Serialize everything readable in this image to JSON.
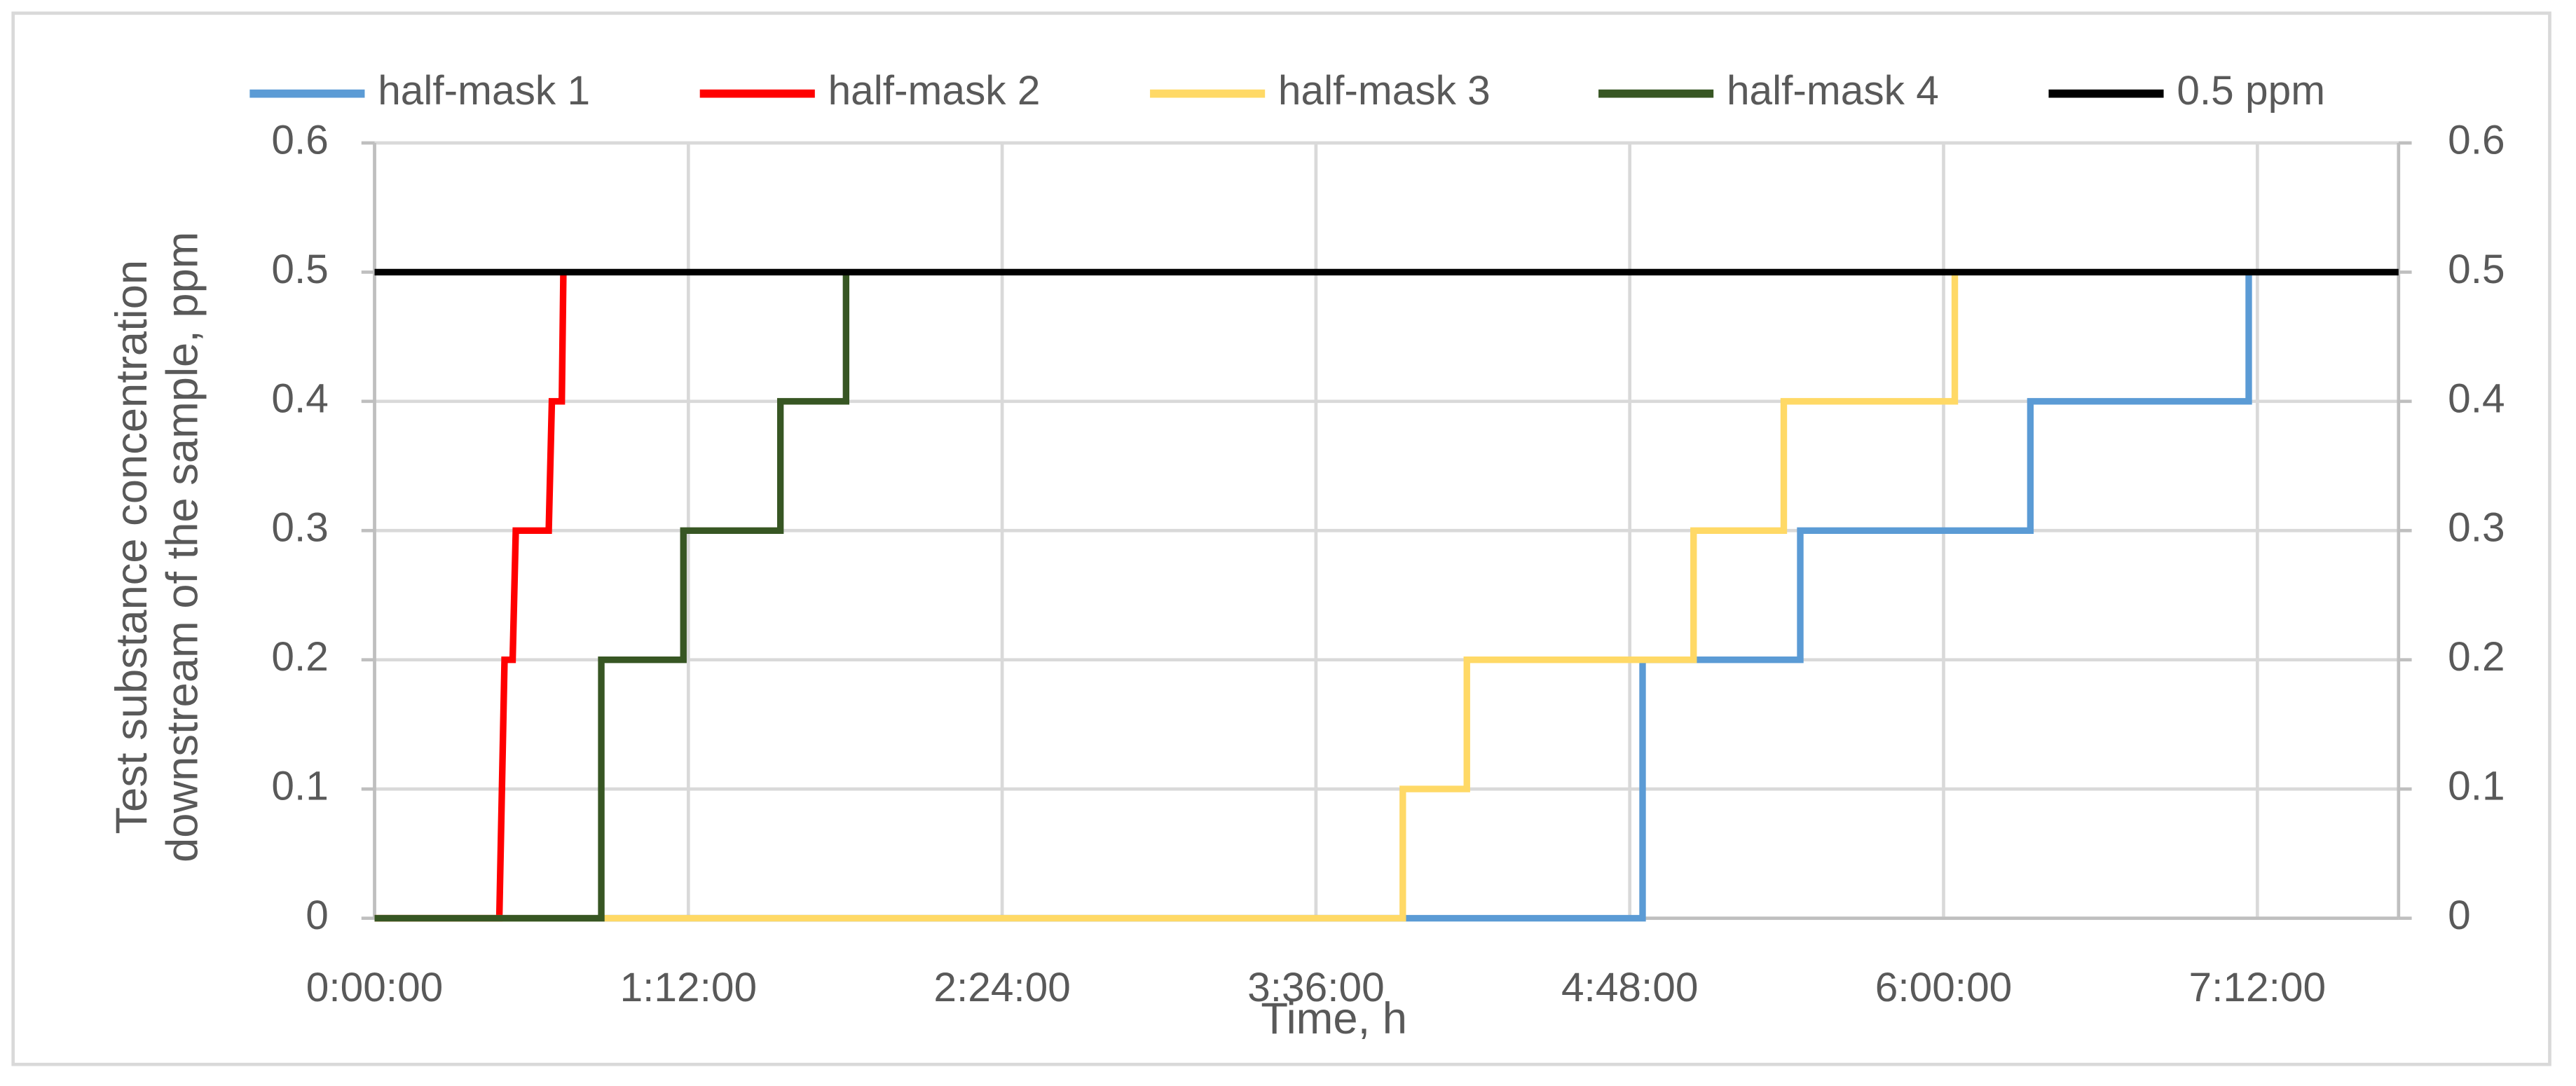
{
  "chart_data": {
    "type": "line",
    "xlabel": "Time, h",
    "ylabel": [
      "Test substance concentration",
      "downstream of the sample, ppm"
    ],
    "xlim": [
      0,
      7.74
    ],
    "xticks": [
      {
        "value": 0,
        "label": "0:00:00"
      },
      {
        "value": 1.2,
        "label": "1:12:00"
      },
      {
        "value": 2.4,
        "label": "2:24:00"
      },
      {
        "value": 3.6,
        "label": "3:36:00"
      },
      {
        "value": 4.8,
        "label": "4:48:00"
      },
      {
        "value": 6,
        "label": "6:00:00"
      },
      {
        "value": 7.2,
        "label": "7:12:00"
      }
    ],
    "ylim": [
      0,
      0.6
    ],
    "yticks": [
      0,
      0.1,
      0.2,
      0.3,
      0.4,
      0.5,
      0.6
    ],
    "y2lim": [
      0,
      0.6
    ],
    "y2ticks": [
      0,
      0.1,
      0.2,
      0.3,
      0.4,
      0.5,
      0.6
    ],
    "grid": true,
    "legend": "top",
    "series": [
      {
        "name": "half-mask 1",
        "color": "#5b9bd5",
        "x": [
          0,
          4.849,
          4.849,
          5.452,
          5.452,
          6.332,
          6.332,
          7.167,
          7.167
        ],
        "values": [
          0,
          0,
          0.2,
          0.2,
          0.3,
          0.3,
          0.4,
          0.4,
          0.5
        ]
      },
      {
        "name": "half-mask 2",
        "color": "#ff0000",
        "x": [
          0,
          0.477,
          0.497,
          0.528,
          0.54,
          0.666,
          0.678,
          0.716,
          0.722
        ],
        "values": [
          0,
          0,
          0.2,
          0.2,
          0.3,
          0.3,
          0.4,
          0.4,
          0.5
        ]
      },
      {
        "name": "half-mask 3",
        "color": "#ffd966",
        "x": [
          0,
          3.932,
          3.932,
          4.177,
          4.177,
          5.044,
          5.044,
          5.389,
          5.389,
          6.043,
          6.043
        ],
        "values": [
          0,
          0,
          0.1,
          0.1,
          0.2,
          0.2,
          0.3,
          0.3,
          0.4,
          0.4,
          0.5
        ]
      },
      {
        "name": "half-mask 4",
        "color": "#375623",
        "x": [
          0,
          0.867,
          0.867,
          1.181,
          1.181,
          1.552,
          1.552,
          1.803,
          1.803
        ],
        "values": [
          0,
          0,
          0.2,
          0.2,
          0.3,
          0.3,
          0.4,
          0.4,
          0.5
        ]
      },
      {
        "name": "0.5 ppm",
        "color": "#000000",
        "x": [
          0,
          7.74
        ],
        "values": [
          0.5,
          0.5
        ]
      }
    ]
  }
}
